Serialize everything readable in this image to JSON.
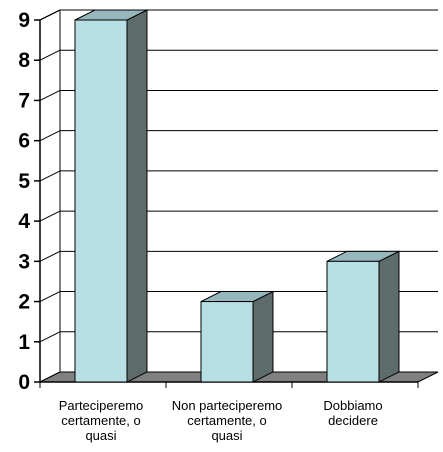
{
  "chart_data": {
    "type": "bar",
    "style": "3d-column",
    "categories": [
      [
        "Parteciperemo",
        "certamente, o",
        "quasi"
      ],
      [
        "Non parteciperemo",
        "certamente, o",
        "quasi"
      ],
      [
        "Dobbiamo",
        "decidere"
      ]
    ],
    "values": [
      9,
      2,
      3
    ],
    "ylim": [
      0,
      9
    ],
    "yticks": [
      0,
      1,
      2,
      3,
      4,
      5,
      6,
      7,
      8,
      9
    ],
    "title": "",
    "xlabel": "",
    "ylabel": "",
    "grid": true,
    "legend": "none"
  },
  "colors": {
    "bar_front": "#b8dfe3",
    "bar_top": "#96b7bb",
    "bar_side": "#5e6b6b",
    "floor": "#808080",
    "wall": "#ffffff",
    "grid": "#000000"
  }
}
